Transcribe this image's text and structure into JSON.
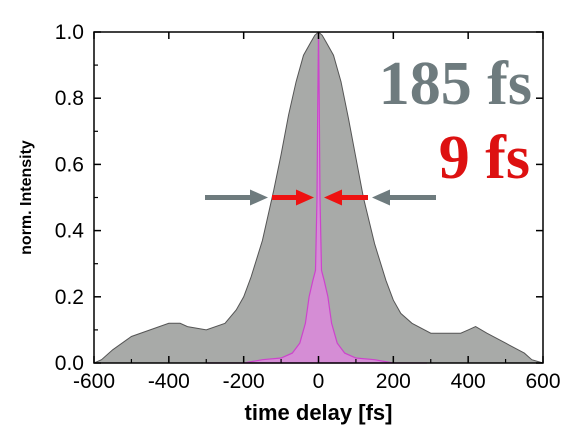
{
  "chart_data": {
    "type": "area",
    "title": "",
    "xlabel": "time delay [fs]",
    "ylabel": "norm. Intensity",
    "xlim": [
      -600,
      600
    ],
    "ylim": [
      0,
      1.0
    ],
    "x_ticks": [
      -600,
      -400,
      -200,
      0,
      200,
      400,
      600
    ],
    "y_ticks": [
      0.0,
      0.2,
      0.4,
      0.6,
      0.8,
      1.0
    ],
    "x_tick_labels": [
      "-600",
      "-400",
      "-200",
      "0",
      "200",
      "400",
      "600"
    ],
    "y_tick_labels": [
      "0.0",
      "0.2",
      "0.4",
      "0.6",
      "0.8",
      "1.0"
    ],
    "grid": false,
    "series": [
      {
        "color": "#a8aaa8",
        "x": [
          -600,
          -580,
          -550,
          -500,
          -450,
          -400,
          -370,
          -350,
          -300,
          -250,
          -220,
          -200,
          -180,
          -150,
          -120,
          -100,
          -80,
          -60,
          -40,
          -20,
          -10,
          0,
          10,
          20,
          40,
          60,
          80,
          100,
          120,
          150,
          180,
          200,
          220,
          250,
          300,
          350,
          380,
          400,
          420,
          450,
          500,
          550,
          570,
          600
        ],
        "y": [
          0.0,
          0.01,
          0.04,
          0.08,
          0.1,
          0.12,
          0.12,
          0.11,
          0.1,
          0.12,
          0.16,
          0.2,
          0.26,
          0.37,
          0.52,
          0.63,
          0.75,
          0.85,
          0.93,
          0.97,
          0.99,
          1.0,
          0.99,
          0.97,
          0.93,
          0.85,
          0.74,
          0.62,
          0.5,
          0.36,
          0.25,
          0.19,
          0.15,
          0.12,
          0.09,
          0.09,
          0.09,
          0.1,
          0.11,
          0.09,
          0.06,
          0.03,
          0.01,
          0.0
        ]
      },
      {
        "color": "#dd88dd",
        "x": [
          -300,
          -200,
          -150,
          -100,
          -70,
          -50,
          -35,
          -25,
          -15,
          -8,
          -4,
          -2,
          0,
          2,
          4,
          8,
          15,
          25,
          35,
          50,
          70,
          100,
          150,
          200,
          290
        ],
        "y": [
          0.0,
          0.0,
          0.01,
          0.015,
          0.03,
          0.06,
          0.12,
          0.2,
          0.25,
          0.28,
          0.5,
          0.8,
          1.0,
          0.8,
          0.5,
          0.28,
          0.25,
          0.2,
          0.12,
          0.06,
          0.03,
          0.015,
          0.01,
          0.0,
          0.0
        ]
      }
    ],
    "annotations": [
      {
        "text": "185 fs",
        "color": "#6e7b7e"
      },
      {
        "text": "9 fs",
        "color": "#dd1111"
      }
    ]
  }
}
